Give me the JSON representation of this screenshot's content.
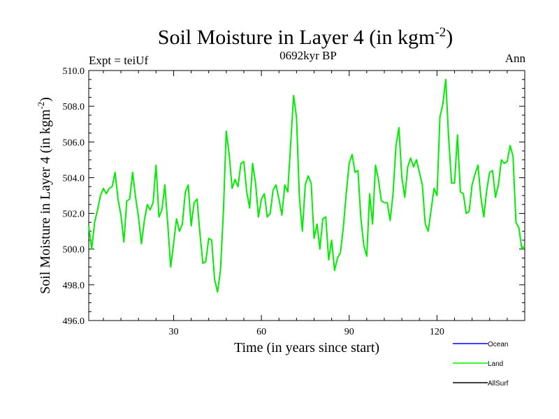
{
  "header": {
    "title_main": "Soil Moisture in Layer 4 (in kgm",
    "title_sup": "-2",
    "title_close": ")",
    "experiment": "Expt = teiUf",
    "period": "0692kyr BP",
    "season": "Ann"
  },
  "chart_data": {
    "type": "line",
    "title": "Soil Moisture in Layer 4 (in kgm-2)",
    "xlabel": "Time (in years since start)",
    "ylabel": "Soil Moisture in Layer 4 (in kgm-2)",
    "xlim": [
      1,
      150
    ],
    "ylim": [
      496.0,
      510.0
    ],
    "x_ticks": [
      30,
      60,
      90,
      120
    ],
    "y_ticks": [
      496.0,
      498.0,
      500.0,
      502.0,
      504.0,
      506.0,
      508.0,
      510.0
    ],
    "y_tick_labels": [
      "496.0",
      "498.0",
      "500.0",
      "502.0",
      "504.0",
      "506.0",
      "508.0",
      "510.0"
    ],
    "legend_position": "bottom-right",
    "series": [
      {
        "name": "Ocean",
        "color": "#0000ff",
        "values": []
      },
      {
        "name": "Land",
        "color": "#00ee00",
        "values": [
          501.3,
          500.0,
          501.5,
          502.2,
          503.0,
          503.4,
          503.1,
          503.4,
          503.5,
          504.3,
          502.8,
          501.9,
          500.4,
          502.7,
          502.8,
          504.3,
          502.9,
          501.8,
          500.3,
          501.6,
          502.5,
          502.2,
          502.6,
          504.7,
          501.8,
          502.2,
          503.6,
          501.4,
          499.0,
          500.3,
          501.7,
          501.0,
          501.4,
          503.2,
          503.6,
          501.3,
          502.6,
          502.8,
          500.9,
          499.2,
          499.3,
          500.6,
          500.5,
          498.3,
          497.6,
          498.8,
          502.0,
          506.6,
          505.3,
          503.4,
          503.9,
          503.5,
          504.8,
          504.9,
          503.2,
          502.3,
          504.8,
          503.7,
          501.8,
          502.8,
          503.1,
          501.8,
          502.0,
          503.3,
          503.6,
          502.8,
          501.9,
          503.6,
          503.2,
          505.9,
          508.6,
          507.4,
          502.9,
          501.0,
          503.6,
          504.1,
          503.7,
          500.6,
          501.4,
          500.0,
          501.7,
          501.8,
          499.4,
          500.5,
          498.8,
          499.5,
          499.8,
          501.2,
          503.1,
          504.8,
          505.3,
          504.3,
          504.4,
          501.7,
          500.2,
          499.6,
          503.1,
          501.4,
          504.7,
          503.9,
          502.7,
          502.6,
          502.6,
          501.6,
          503.1,
          505.8,
          506.8,
          504.0,
          502.9,
          504.6,
          505.1,
          504.6,
          505.0,
          504.3,
          503.6,
          501.4,
          501.0,
          502.2,
          503.4,
          503.0,
          507.4,
          508.1,
          509.5,
          506.2,
          503.7,
          503.7,
          506.4,
          503.2,
          503.1,
          502.0,
          502.1,
          503.6,
          504.2,
          504.7,
          502.9,
          501.8,
          503.3,
          504.3,
          504.4,
          502.9,
          503.6,
          505.0,
          504.8,
          504.9,
          505.8,
          505.2,
          501.5,
          501.2,
          500.0,
          500.2
        ]
      },
      {
        "name": "AllSurf",
        "color": "#000000",
        "values": []
      }
    ]
  }
}
